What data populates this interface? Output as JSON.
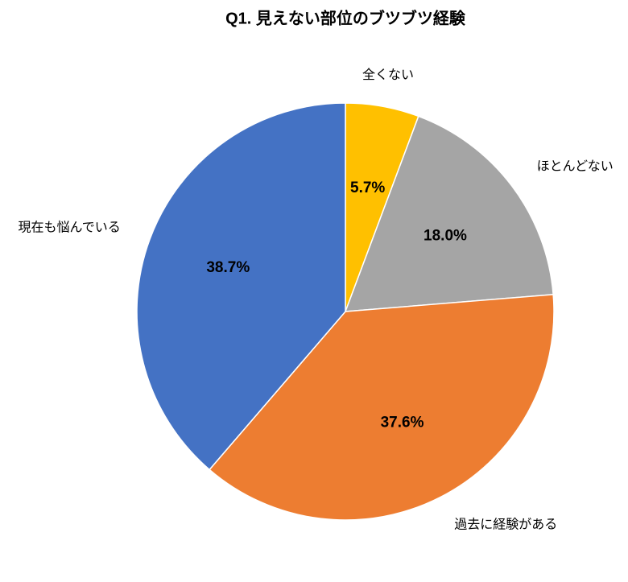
{
  "chart_data": {
    "type": "pie",
    "title": "Q1. 見えない部位のブツブツ経験",
    "categories": [
      "全くない",
      "ほとんどない",
      "過去に経験がある",
      "現在も悩んでいる"
    ],
    "values": [
      5.7,
      18.0,
      37.6,
      38.7
    ],
    "value_labels": [
      "5.7%",
      "18.0%",
      "37.6%",
      "38.7%"
    ],
    "colors": [
      "#ffc000",
      "#a5a5a5",
      "#ed7d31",
      "#4472c4"
    ]
  }
}
